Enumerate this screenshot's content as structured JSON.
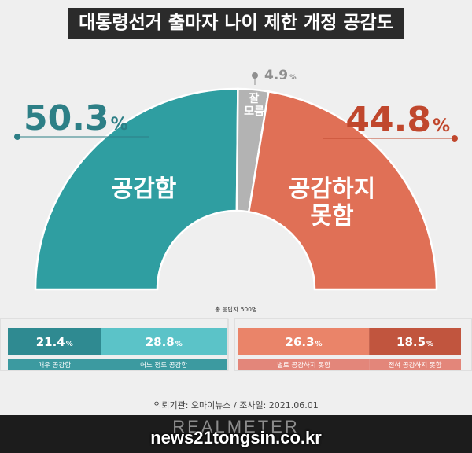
{
  "title": "대통령선거 출마자 나이 제한 개정 공감도",
  "respondents": "총 응답자 500명",
  "source": "의뢰기관: 오마이뉴스 / 조사일: 2021.06.01",
  "brand": "REALMETER",
  "watermark": "news21tongsin.co.kr",
  "colors": {
    "agree": "#2f9ea1",
    "disagree": "#e07056",
    "unsure": "#b3b3b3",
    "agree_strong": "#2f8a91",
    "agree_somewhat": "#5bc3c8",
    "disagree_somewhat": "#ea8469",
    "disagree_strong": "#c1553e"
  },
  "chart_data": [
    {
      "type": "pie",
      "title": "대통령선거 출마자 나이 제한 개정 공감도",
      "labels": [
        "공감함",
        "잘 모름",
        "공감하지 못함"
      ],
      "values": [
        50.3,
        4.9,
        44.8
      ],
      "value_labels": [
        "50.3",
        "4.9",
        "44.8"
      ],
      "unit": "%",
      "slice_texts": [
        "공감함",
        "잘|모름",
        "공감하지|못함"
      ]
    },
    {
      "type": "bar",
      "orientation": "horizontal-stacked",
      "categories": [
        "매우 공감함",
        "어느 정도 공감함"
      ],
      "values": [
        21.4,
        28.8
      ],
      "value_labels": [
        "21.4",
        "28.8"
      ],
      "unit": "%"
    },
    {
      "type": "bar",
      "orientation": "horizontal-stacked",
      "categories": [
        "별로 공감하지 못함",
        "전혀 공감하지 못함"
      ],
      "values": [
        26.3,
        18.5
      ],
      "value_labels": [
        "26.3",
        "18.5"
      ],
      "unit": "%"
    }
  ]
}
